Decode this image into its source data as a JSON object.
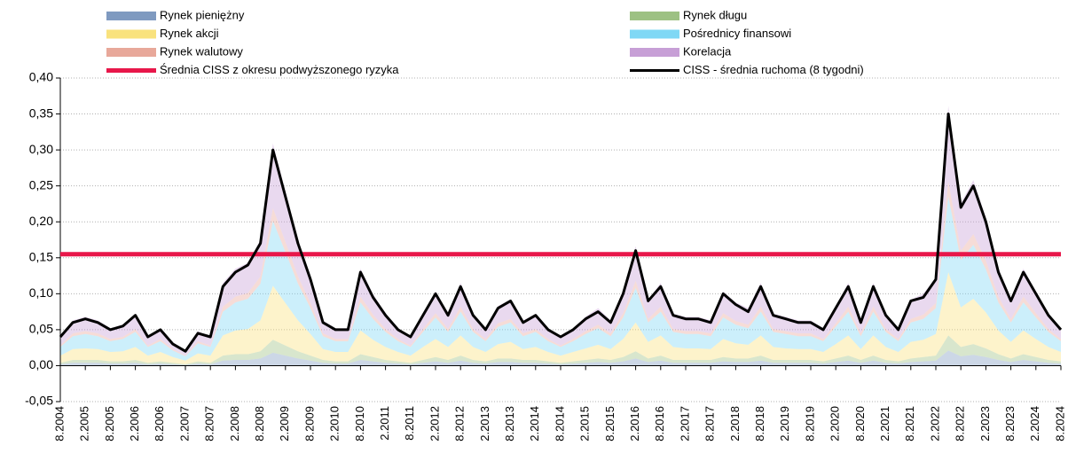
{
  "chart_data": {
    "type": "stacked_area",
    "categories": [
      "8.2004",
      null,
      "2.2005",
      null,
      "8.2005",
      null,
      "2.2006",
      null,
      "8.2006",
      null,
      "2.2007",
      null,
      "8.2007",
      null,
      "2.2008",
      null,
      "8.2008",
      null,
      "2.2009",
      null,
      "8.2009",
      null,
      "2.2010",
      null,
      "8.2010",
      null,
      "2.2011",
      null,
      "8.2011",
      null,
      "2.2012",
      null,
      "8.2012",
      null,
      "2.2013",
      null,
      "8.2013",
      null,
      "2.2014",
      null,
      "8.2014",
      null,
      "2.2015",
      null,
      "8.2015",
      null,
      "2.2016",
      null,
      "8.2016",
      null,
      "2.2017",
      null,
      "8.2017",
      null,
      "2.2018",
      null,
      "8.2018",
      null,
      "2.2019",
      null,
      "8.2019",
      null,
      "2.2020",
      null,
      "8.2020",
      null,
      "2.2021",
      null,
      "8.2021",
      null,
      "2.2022",
      null,
      "8.2022",
      null,
      "2.2023",
      null,
      "8.2023",
      null,
      "2.2024",
      null,
      "8.2024"
    ],
    "series": [
      {
        "name": "Rynek pieniężny",
        "color": "#7f9ac0",
        "values": [
          0.002,
          0.004,
          0.004,
          0.004,
          0.003,
          0.003,
          0.004,
          0.002,
          0.003,
          0.002,
          0.001,
          0.003,
          0.002,
          0.007,
          0.008,
          0.008,
          0.01,
          0.018,
          0.014,
          0.01,
          0.007,
          0.004,
          0.003,
          0.003,
          0.008,
          0.006,
          0.004,
          0.003,
          0.002,
          0.004,
          0.006,
          0.004,
          0.007,
          0.004,
          0.003,
          0.005,
          0.005,
          0.004,
          0.004,
          0.003,
          0.002,
          0.003,
          0.004,
          0.005,
          0.004,
          0.006,
          0.01,
          0.005,
          0.007,
          0.004,
          0.004,
          0.004,
          0.004,
          0.006,
          0.005,
          0.005,
          0.007,
          0.004,
          0.004,
          0.004,
          0.004,
          0.003,
          0.005,
          0.007,
          0.004,
          0.007,
          0.004,
          0.003,
          0.005,
          0.006,
          0.007,
          0.021,
          0.013,
          0.015,
          0.012,
          0.008,
          0.005,
          0.008,
          0.006,
          0.004,
          0.003
        ]
      },
      {
        "name": "Rynek długu",
        "color": "#9dc183",
        "values": [
          0.002,
          0.004,
          0.004,
          0.004,
          0.003,
          0.003,
          0.004,
          0.002,
          0.003,
          0.002,
          0.001,
          0.003,
          0.002,
          0.007,
          0.008,
          0.008,
          0.01,
          0.018,
          0.014,
          0.01,
          0.007,
          0.004,
          0.003,
          0.003,
          0.008,
          0.006,
          0.004,
          0.003,
          0.002,
          0.004,
          0.006,
          0.004,
          0.007,
          0.004,
          0.003,
          0.005,
          0.005,
          0.004,
          0.004,
          0.003,
          0.002,
          0.003,
          0.004,
          0.005,
          0.004,
          0.006,
          0.01,
          0.005,
          0.007,
          0.004,
          0.004,
          0.004,
          0.004,
          0.006,
          0.005,
          0.005,
          0.007,
          0.004,
          0.004,
          0.004,
          0.004,
          0.003,
          0.005,
          0.007,
          0.004,
          0.007,
          0.004,
          0.003,
          0.005,
          0.006,
          0.007,
          0.021,
          0.013,
          0.015,
          0.012,
          0.008,
          0.005,
          0.008,
          0.006,
          0.004,
          0.003
        ]
      },
      {
        "name": "Rynek akcji",
        "color": "#f9e27d",
        "values": [
          0.01,
          0.015,
          0.016,
          0.015,
          0.013,
          0.014,
          0.018,
          0.01,
          0.013,
          0.008,
          0.005,
          0.011,
          0.01,
          0.028,
          0.033,
          0.035,
          0.043,
          0.075,
          0.059,
          0.043,
          0.03,
          0.015,
          0.013,
          0.013,
          0.033,
          0.024,
          0.018,
          0.013,
          0.01,
          0.018,
          0.025,
          0.018,
          0.028,
          0.018,
          0.013,
          0.02,
          0.023,
          0.015,
          0.018,
          0.013,
          0.01,
          0.013,
          0.016,
          0.019,
          0.015,
          0.025,
          0.04,
          0.023,
          0.028,
          0.018,
          0.016,
          0.016,
          0.015,
          0.025,
          0.021,
          0.019,
          0.028,
          0.018,
          0.016,
          0.015,
          0.015,
          0.013,
          0.02,
          0.028,
          0.015,
          0.028,
          0.018,
          0.013,
          0.023,
          0.024,
          0.03,
          0.088,
          0.055,
          0.063,
          0.05,
          0.033,
          0.023,
          0.033,
          0.025,
          0.018,
          0.013
        ]
      },
      {
        "name": "Pośrednicy finansowi",
        "color": "#7fd8f5",
        "values": [
          0.012,
          0.018,
          0.02,
          0.018,
          0.015,
          0.017,
          0.021,
          0.012,
          0.015,
          0.009,
          0.006,
          0.014,
          0.012,
          0.033,
          0.039,
          0.042,
          0.051,
          0.09,
          0.071,
          0.051,
          0.036,
          0.018,
          0.015,
          0.015,
          0.039,
          0.029,
          0.021,
          0.015,
          0.012,
          0.021,
          0.03,
          0.021,
          0.033,
          0.021,
          0.015,
          0.024,
          0.027,
          0.018,
          0.021,
          0.015,
          0.012,
          0.015,
          0.02,
          0.023,
          0.018,
          0.03,
          0.048,
          0.027,
          0.033,
          0.021,
          0.02,
          0.02,
          0.018,
          0.03,
          0.026,
          0.023,
          0.033,
          0.021,
          0.02,
          0.018,
          0.018,
          0.015,
          0.024,
          0.033,
          0.018,
          0.033,
          0.021,
          0.015,
          0.027,
          0.029,
          0.036,
          0.105,
          0.066,
          0.075,
          0.06,
          0.039,
          0.027,
          0.039,
          0.03,
          0.021,
          0.015
        ]
      },
      {
        "name": "Rynek walutowy",
        "color": "#e8a89a",
        "values": [
          0.002,
          0.004,
          0.004,
          0.004,
          0.003,
          0.003,
          0.004,
          0.002,
          0.003,
          0.002,
          0.001,
          0.003,
          0.002,
          0.007,
          0.008,
          0.008,
          0.01,
          0.018,
          0.014,
          0.01,
          0.007,
          0.004,
          0.003,
          0.003,
          0.008,
          0.006,
          0.004,
          0.003,
          0.002,
          0.004,
          0.006,
          0.004,
          0.007,
          0.004,
          0.003,
          0.005,
          0.005,
          0.004,
          0.004,
          0.003,
          0.002,
          0.003,
          0.004,
          0.005,
          0.004,
          0.006,
          0.01,
          0.005,
          0.007,
          0.004,
          0.004,
          0.004,
          0.004,
          0.006,
          0.005,
          0.005,
          0.007,
          0.004,
          0.004,
          0.004,
          0.004,
          0.003,
          0.005,
          0.007,
          0.004,
          0.007,
          0.004,
          0.003,
          0.005,
          0.006,
          0.007,
          0.021,
          0.013,
          0.015,
          0.012,
          0.008,
          0.005,
          0.008,
          0.006,
          0.004,
          0.003
        ]
      },
      {
        "name": "Korelacja",
        "color": "#c79fd6",
        "values": [
          0.012,
          0.018,
          0.02,
          0.018,
          0.015,
          0.017,
          0.021,
          0.012,
          0.015,
          0.009,
          0.006,
          0.014,
          0.012,
          0.033,
          0.039,
          0.042,
          0.051,
          0.09,
          0.071,
          0.051,
          0.036,
          0.018,
          0.015,
          0.015,
          0.039,
          0.029,
          0.021,
          0.015,
          0.012,
          0.021,
          0.03,
          0.021,
          0.033,
          0.021,
          0.015,
          0.024,
          0.027,
          0.018,
          0.021,
          0.015,
          0.012,
          0.015,
          0.02,
          0.023,
          0.018,
          0.03,
          0.048,
          0.027,
          0.033,
          0.021,
          0.02,
          0.02,
          0.018,
          0.03,
          0.026,
          0.023,
          0.033,
          0.021,
          0.02,
          0.018,
          0.018,
          0.015,
          0.024,
          0.033,
          0.018,
          0.033,
          0.021,
          0.015,
          0.027,
          0.029,
          0.036,
          0.105,
          0.066,
          0.075,
          0.06,
          0.039,
          0.027,
          0.039,
          0.03,
          0.021,
          0.015
        ]
      }
    ],
    "reference_line": {
      "name": "Średnia CISS z okresu podwyższonego ryzyka",
      "color": "#e8174a",
      "value": 0.155
    },
    "line_series": {
      "name": "CISS - średnia ruchoma (8 tygodni)",
      "color": "#000000",
      "values": [
        0.04,
        0.06,
        0.065,
        0.06,
        0.05,
        0.055,
        0.07,
        0.04,
        0.05,
        0.03,
        0.02,
        0.045,
        0.04,
        0.11,
        0.13,
        0.14,
        0.17,
        0.3,
        0.235,
        0.17,
        0.12,
        0.06,
        0.05,
        0.05,
        0.13,
        0.095,
        0.07,
        0.05,
        0.04,
        0.07,
        0.1,
        0.07,
        0.11,
        0.07,
        0.05,
        0.08,
        0.09,
        0.06,
        0.07,
        0.05,
        0.04,
        0.05,
        0.065,
        0.075,
        0.06,
        0.1,
        0.16,
        0.09,
        0.11,
        0.07,
        0.065,
        0.065,
        0.06,
        0.1,
        0.085,
        0.075,
        0.11,
        0.07,
        0.065,
        0.06,
        0.06,
        0.05,
        0.08,
        0.11,
        0.06,
        0.11,
        0.07,
        0.05,
        0.09,
        0.095,
        0.12,
        0.35,
        0.22,
        0.25,
        0.2,
        0.13,
        0.09,
        0.13,
        0.1,
        0.07,
        0.05
      ]
    },
    "ylim": [
      -0.05,
      0.4
    ],
    "yticks": [
      {
        "value": -0.05,
        "label": "-0,05"
      },
      {
        "value": 0,
        "label": "0,00"
      },
      {
        "value": 0.05,
        "label": "0,05"
      },
      {
        "value": 0.1,
        "label": "0,10"
      },
      {
        "value": 0.15,
        "label": "0,15"
      },
      {
        "value": 0.2,
        "label": "0,20"
      },
      {
        "value": 0.25,
        "label": "0,25"
      },
      {
        "value": 0.3,
        "label": "0,30"
      },
      {
        "value": 0.35,
        "label": "0,35"
      },
      {
        "value": 0.4,
        "label": "0,40"
      }
    ],
    "grid": true
  }
}
